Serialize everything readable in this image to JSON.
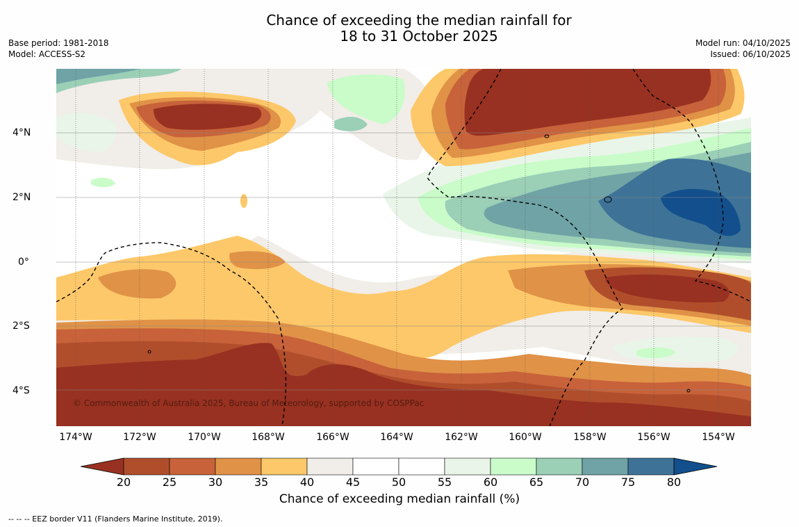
{
  "title": {
    "line1": "Chance of exceeding the median rainfall for",
    "line2": "18 to 31 October 2025"
  },
  "meta": {
    "base_period": "Base period: 1981-2018",
    "model": "Model: ACCESS-S2",
    "model_run": "Model run: 04/10/2025",
    "issued": "Issued: 06/10/2025"
  },
  "map": {
    "x_ticks": [
      "174°W",
      "172°W",
      "170°W",
      "168°W",
      "166°W",
      "164°W",
      "162°W",
      "160°W",
      "158°W",
      "156°W",
      "154°W"
    ],
    "y_ticks": [
      "4°N",
      "2°N",
      "0°",
      "2°S",
      "4°S"
    ],
    "copyright": "© Commonwealth of Australia 2025, Bureau of Meteorology, supported by COSPPac"
  },
  "colorbar": {
    "ticks": [
      "20",
      "25",
      "30",
      "35",
      "40",
      "45",
      "50",
      "55",
      "60",
      "65",
      "70",
      "75",
      "80"
    ],
    "colors": [
      "#983121",
      "#b04e2c",
      "#c8623a",
      "#e09247",
      "#fdc869",
      "#f1ede8",
      "#ffffff",
      "#ffffff",
      "#e9f5e9",
      "#c9fcc9",
      "#9bcfb6",
      "#6fa3a5",
      "#3e7397",
      "#124f8c"
    ],
    "label": "Chance of exceeding median rainfall (%)"
  },
  "footnote": "--  --  -- EEZ border V11 (Flanders Marine Institute, 2019)."
}
